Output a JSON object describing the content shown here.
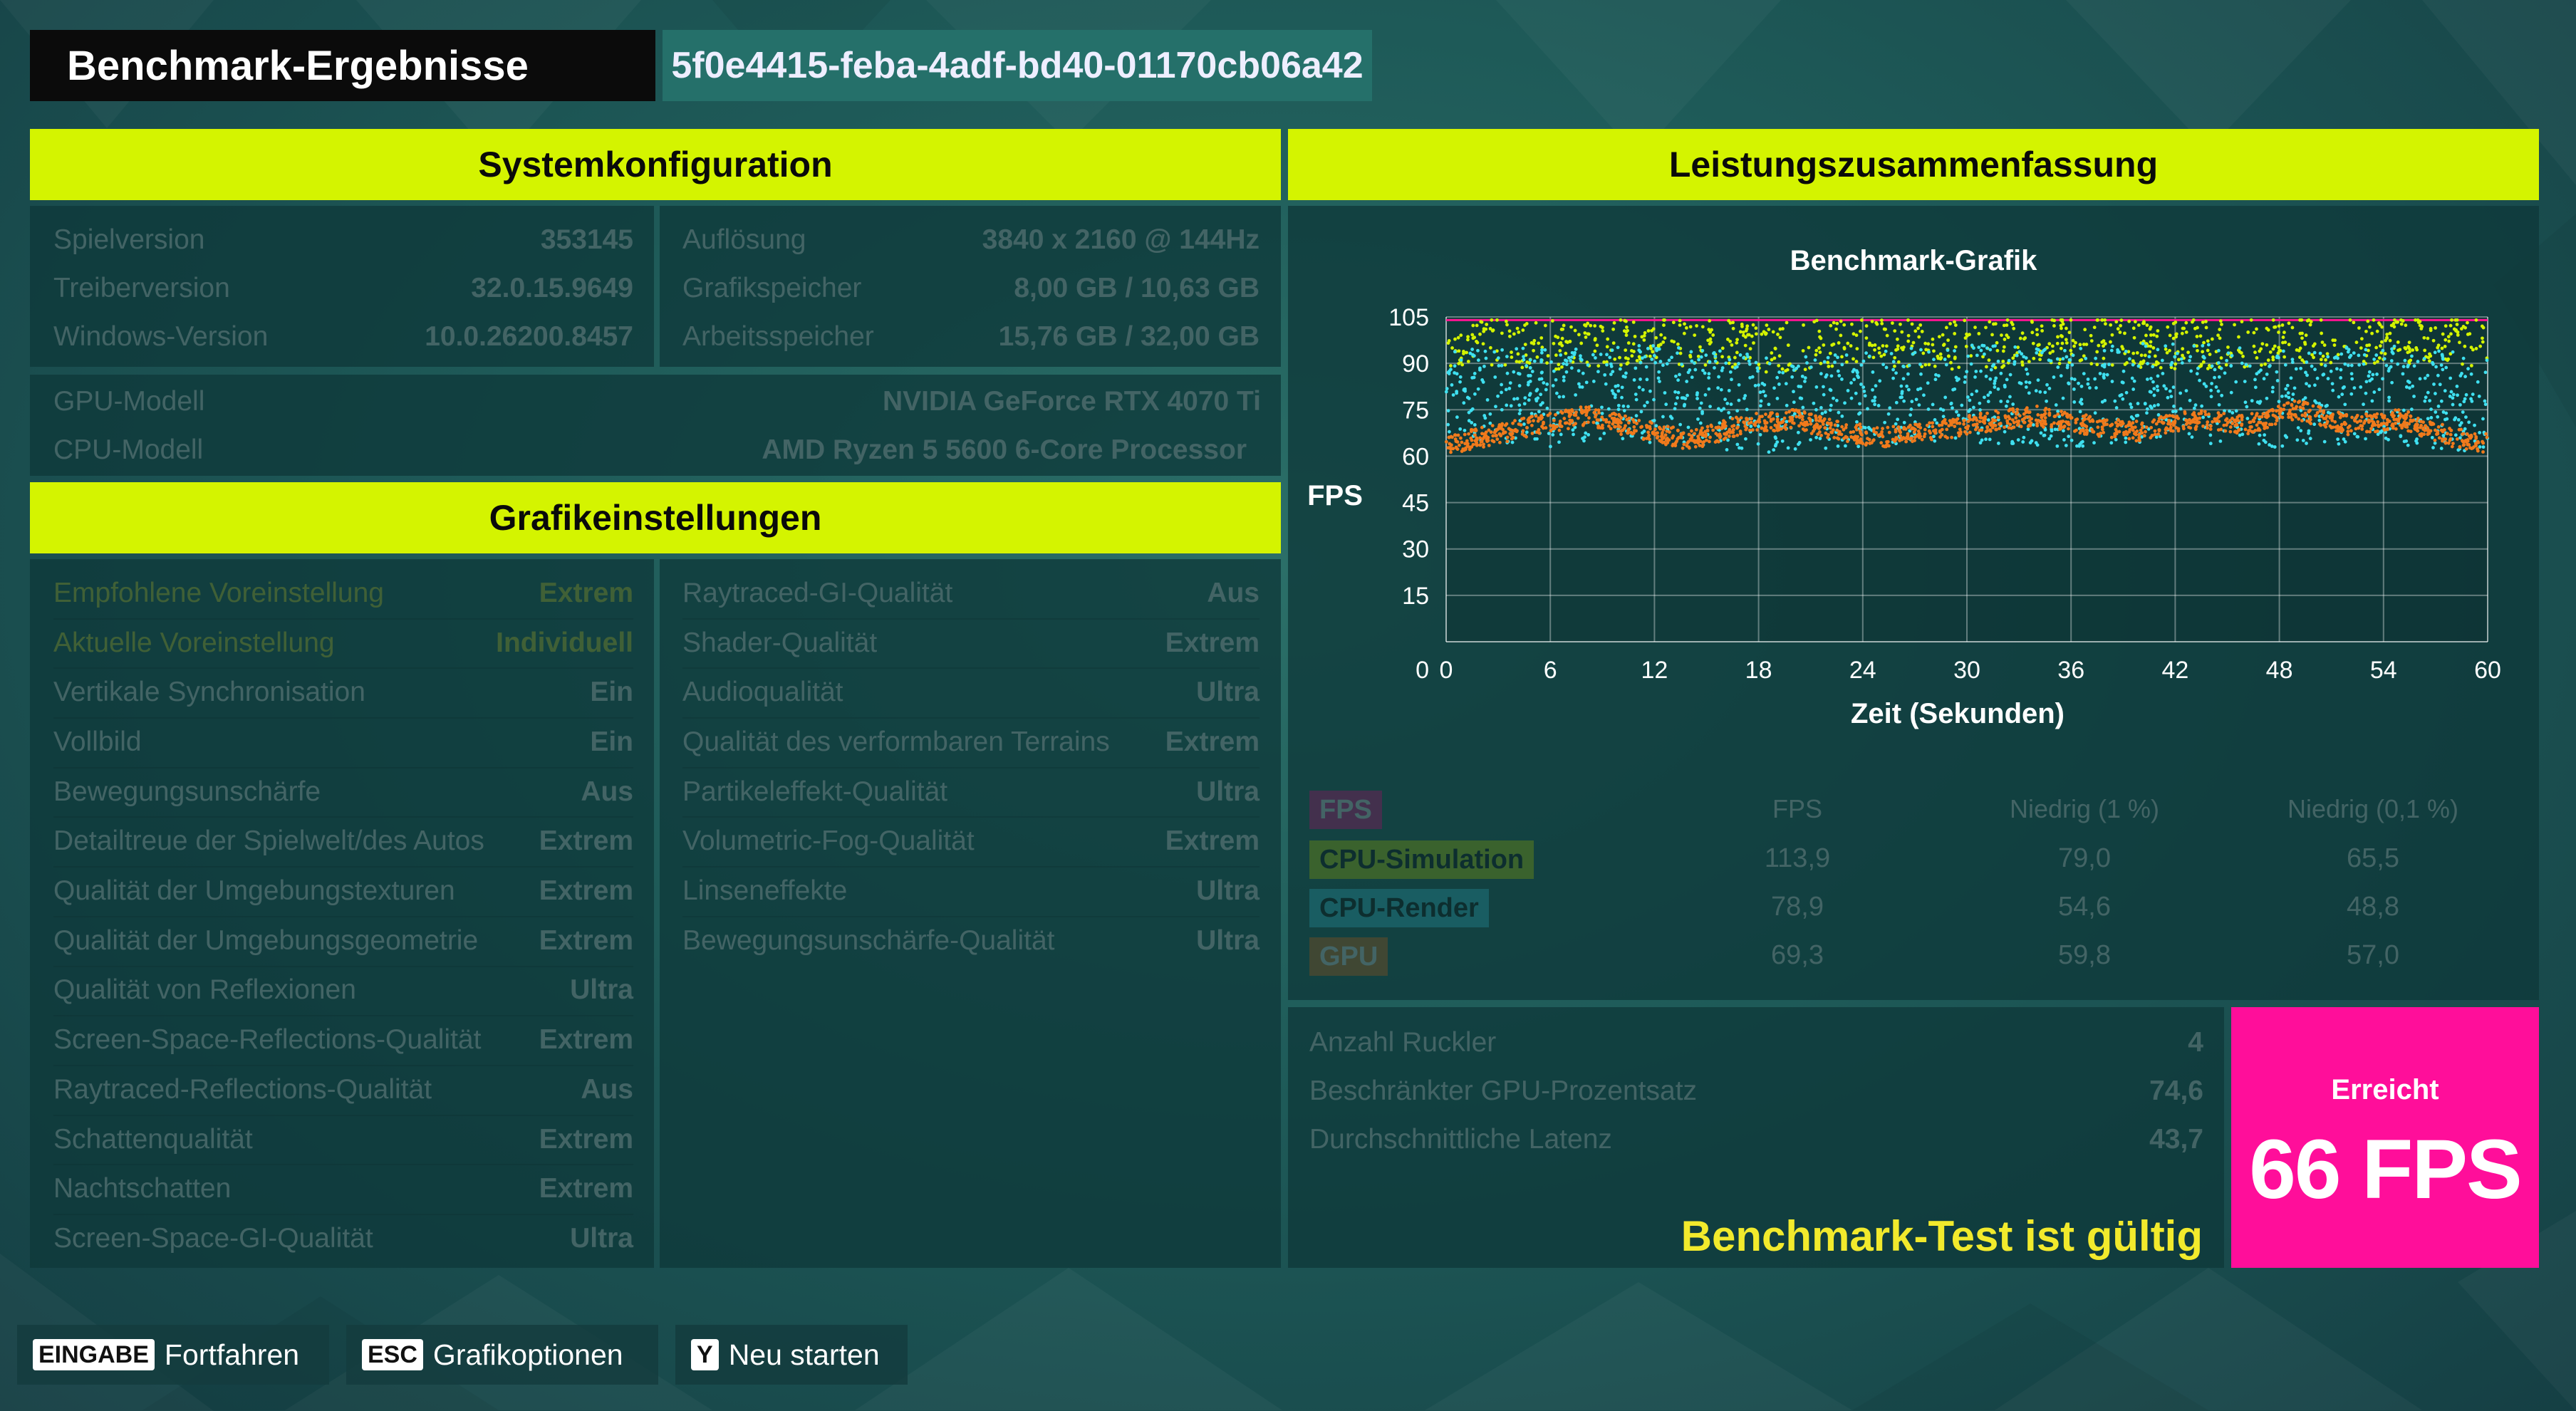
{
  "title": "Benchmark-Ergebnisse",
  "run_id": "5f0e4415-feba-4adf-bd40-01170cb06a42",
  "colors": {
    "accent": "#d4f400",
    "fps_tag": "#ff1493",
    "cpu_sim": "#d4f400",
    "cpu_render": "#3fe0f0",
    "gpu": "#f07a1c",
    "achieved_bg": "#ff0e9a",
    "valid_text": "#f2ea2c"
  },
  "system": {
    "heading": "Systemkonfiguration",
    "left": [
      {
        "label": "Spielversion",
        "value": "353145"
      },
      {
        "label": "Treiberversion",
        "value": "32.0.15.9649"
      },
      {
        "label": "Windows-Version",
        "value": "10.0.26200.8457"
      }
    ],
    "right": [
      {
        "label": "Auflösung",
        "value": "3840 x 2160 @ 144Hz"
      },
      {
        "label": "Grafikspeicher",
        "value": "8,00 GB / 10,63 GB"
      },
      {
        "label": "Arbeitsspeicher",
        "value": "15,76 GB / 32,00 GB"
      }
    ],
    "hardware": [
      {
        "label": "GPU-Modell",
        "value": "NVIDIA GeForce RTX 4070 Ti"
      },
      {
        "label": "CPU-Modell",
        "value": "AMD Ryzen 5 5600 6-Core Processor"
      }
    ]
  },
  "graphics": {
    "heading": "Grafikeinstellungen",
    "left": [
      {
        "label": "Empfohlene Voreinstellung",
        "value": "Extrem",
        "highlight": true
      },
      {
        "label": "Aktuelle Voreinstellung",
        "value": "Individuell",
        "highlight": true
      },
      {
        "label": "Vertikale Synchronisation",
        "value": "Ein"
      },
      {
        "label": "Vollbild",
        "value": "Ein"
      },
      {
        "label": "Bewegungsunschärfe",
        "value": "Aus"
      },
      {
        "label": "Detailtreue der Spielwelt/des Autos",
        "value": "Extrem"
      },
      {
        "label": "Qualität der Umgebungstexturen",
        "value": "Extrem"
      },
      {
        "label": "Qualität der Umgebungsgeometrie",
        "value": "Extrem"
      },
      {
        "label": "Qualität von Reflexionen",
        "value": "Ultra"
      },
      {
        "label": "Screen-Space-Reflections-Qualität",
        "value": "Extrem"
      },
      {
        "label": "Raytraced-Reflections-Qualität",
        "value": "Aus"
      },
      {
        "label": "Schattenqualität",
        "value": "Extrem"
      },
      {
        "label": "Nachtschatten",
        "value": "Extrem"
      },
      {
        "label": "Screen-Space-GI-Qualität",
        "value": "Ultra"
      }
    ],
    "right": [
      {
        "label": "Raytraced-GI-Qualität",
        "value": "Aus"
      },
      {
        "label": "Shader-Qualität",
        "value": "Extrem"
      },
      {
        "label": "Audioqualität",
        "value": "Ultra"
      },
      {
        "label": "Qualität des verformbaren Terrains",
        "value": "Extrem"
      },
      {
        "label": "Partikeleffekt-Qualität",
        "value": "Ultra"
      },
      {
        "label": "Volumetric-Fog-Qualität",
        "value": "Extrem"
      },
      {
        "label": "Linseneffekte",
        "value": "Ultra"
      },
      {
        "label": "Bewegungsunschärfe-Qualität",
        "value": "Ultra"
      }
    ]
  },
  "performance": {
    "heading": "Leistungszusammenfassung",
    "table": {
      "columns": [
        "FPS",
        "Niedrig (1 %)",
        "Niedrig (0,1 %)"
      ],
      "legend_title": "FPS",
      "rows": [
        {
          "name": "CPU-Simulation",
          "color": "#d4f400",
          "values": [
            "113,9",
            "79,0",
            "65,5"
          ]
        },
        {
          "name": "CPU-Render",
          "color": "#3fe0f0",
          "values": [
            "78,9",
            "54,6",
            "48,8"
          ]
        },
        {
          "name": "GPU",
          "color": "#f07a1c",
          "values": [
            "69,3",
            "59,8",
            "57,0"
          ]
        }
      ]
    },
    "stats": [
      {
        "label": "Anzahl Ruckler",
        "value": "4"
      },
      {
        "label": "Beschränkter GPU-Prozentsatz",
        "value": "74,6"
      },
      {
        "label": "Durchschnittliche Latenz",
        "value": "43,7"
      }
    ],
    "valid_text": "Benchmark-Test ist gültig",
    "achieved_label": "Erreicht",
    "achieved_value": "66 FPS"
  },
  "chart_data": {
    "type": "scatter",
    "title": "Benchmark-Grafik",
    "xlabel": "Zeit (Sekunden)",
    "ylabel": "FPS",
    "xlim": [
      0,
      60
    ],
    "ylim": [
      0,
      105
    ],
    "xticks": [
      "0",
      "6",
      "12",
      "18",
      "24",
      "30",
      "36",
      "42",
      "48",
      "54",
      "60"
    ],
    "yticks": [
      "105",
      "90",
      "75",
      "60",
      "45",
      "30",
      "15"
    ],
    "y_origin_label": "0",
    "grid": true,
    "series": [
      {
        "name": "FPS",
        "color": "#ff1493",
        "approx": "flat line near 104",
        "values": [
          104,
          104,
          104,
          104,
          104,
          104,
          104,
          104,
          104,
          104,
          104
        ]
      },
      {
        "name": "CPU-Simulation",
        "color": "#d4f400",
        "approx": "scatter mostly 88-104",
        "values": [
          97,
          96,
          98,
          95,
          97,
          96,
          98,
          96,
          97,
          98,
          97
        ]
      },
      {
        "name": "CPU-Render",
        "color": "#3fe0f0",
        "approx": "scatter mostly 60-104, mean ~79",
        "values": [
          82,
          79,
          80,
          77,
          78,
          80,
          79,
          81,
          78,
          80,
          77
        ]
      },
      {
        "name": "GPU",
        "color": "#f07a1c",
        "approx": "dense band",
        "x": [
          1,
          3,
          5,
          8,
          11,
          14,
          17,
          20,
          22,
          25,
          28,
          31,
          34,
          37,
          40,
          43,
          46,
          49,
          52,
          55,
          58,
          60
        ],
        "values": [
          65,
          67,
          70,
          73,
          69,
          65,
          70,
          72,
          69,
          66,
          68,
          71,
          73,
          70,
          68,
          72,
          70,
          75,
          70,
          72,
          66,
          64
        ]
      }
    ]
  },
  "footer": {
    "buttons": [
      {
        "key": "EINGABE",
        "label": "Fortfahren"
      },
      {
        "key": "ESC",
        "label": "Grafikoptionen"
      },
      {
        "key": "Y",
        "label": "Neu starten"
      }
    ]
  }
}
